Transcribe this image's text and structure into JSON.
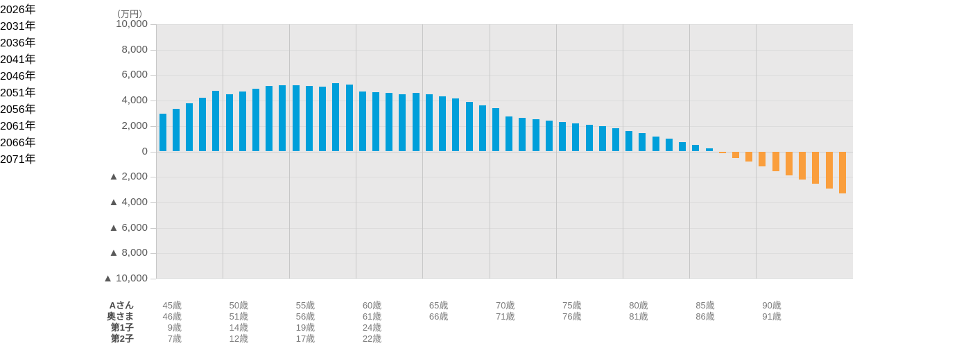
{
  "unit_label": "（万円）",
  "colors": {
    "bar_positive": "#009FDA",
    "bar_negative": "#FA9E3C",
    "plot_background": "#E9E8E8",
    "h_gridline": "#DCDCDC",
    "zero_line": "#CFCFCF",
    "v_gridline": "#C7C7C7",
    "tick_stub": "#C9C9C9",
    "axis_text": "#595959",
    "table_text": "#7A7A7A",
    "table_label_text": "#4B4B4B"
  },
  "y_axis": {
    "tick_labels": [
      "10,000",
      "8,000",
      "6,000",
      "4,000",
      "2,000",
      "0",
      "▲ 2,000",
      "▲ 4,000",
      "▲ 6,000",
      "▲ 8,000",
      "▲ 10,000"
    ],
    "tick_values": [
      10000,
      8000,
      6000,
      4000,
      2000,
      0,
      -2000,
      -4000,
      -6000,
      -8000,
      -10000
    ]
  },
  "x_axis": {
    "tick_labels": [
      "2026年",
      "2031年",
      "2036年",
      "2041年",
      "2046年",
      "2051年",
      "2056年",
      "2061年",
      "2066年",
      "2071年"
    ]
  },
  "chart_data": {
    "type": "bar",
    "title": "",
    "ylabel": "（万円）",
    "ylim": [
      -10000,
      10000
    ],
    "ytick_step": 2000,
    "xtick_interval": 5,
    "grid": true,
    "negative_tick_prefix": "▲",
    "x": [
      2026,
      2027,
      2028,
      2029,
      2030,
      2031,
      2032,
      2033,
      2034,
      2035,
      2036,
      2037,
      2038,
      2039,
      2040,
      2041,
      2042,
      2043,
      2044,
      2045,
      2046,
      2047,
      2048,
      2049,
      2050,
      2051,
      2052,
      2053,
      2054,
      2055,
      2056,
      2057,
      2058,
      2059,
      2060,
      2061,
      2062,
      2063,
      2064,
      2065,
      2066,
      2067,
      2068,
      2069,
      2070,
      2071,
      2072,
      2073,
      2074,
      2075,
      2076,
      2077
    ],
    "values": [
      2950,
      3350,
      3800,
      4250,
      4750,
      4500,
      4700,
      4950,
      5150,
      5190,
      5230,
      5160,
      5100,
      5350,
      5250,
      4730,
      4680,
      4620,
      4480,
      4620,
      4500,
      4350,
      4150,
      3900,
      3650,
      3400,
      2750,
      2650,
      2550,
      2400,
      2300,
      2200,
      2100,
      1980,
      1810,
      1610,
      1430,
      1190,
      990,
      730,
      495,
      220,
      -150,
      -510,
      -810,
      -1180,
      -1550,
      -1860,
      -2230,
      -2560,
      -2900,
      -3300
    ]
  },
  "age_table": {
    "row_labels": [
      "Aさん",
      "奥さま",
      "第1子",
      "第2子"
    ],
    "columns": [
      "2026年",
      "2031年",
      "2036年",
      "2041年",
      "2046年",
      "2051年",
      "2056年",
      "2061年",
      "2066年",
      "2071年"
    ],
    "rows": [
      [
        "45歳",
        "50歳",
        "55歳",
        "60歳",
        "65歳",
        "70歳",
        "75歳",
        "80歳",
        "85歳",
        "90歳"
      ],
      [
        "46歳",
        "51歳",
        "56歳",
        "61歳",
        "66歳",
        "71歳",
        "76歳",
        "81歳",
        "86歳",
        "91歳"
      ],
      [
        "9歳",
        "14歳",
        "19歳",
        "24歳",
        "",
        "",
        "",
        "",
        "",
        ""
      ],
      [
        "7歳",
        "12歳",
        "17歳",
        "22歳",
        "",
        "",
        "",
        "",
        "",
        ""
      ]
    ]
  }
}
